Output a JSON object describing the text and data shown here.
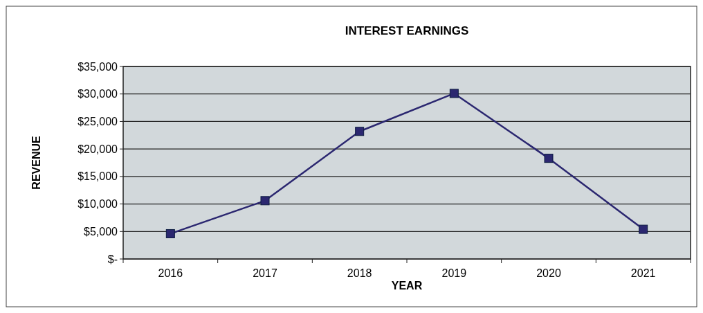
{
  "chart_data": {
    "type": "line",
    "title": "INTEREST EARNINGS",
    "xlabel": "YEAR",
    "ylabel": "REVENUE",
    "categories": [
      "2016",
      "2017",
      "2018",
      "2019",
      "2020",
      "2021"
    ],
    "series": [
      {
        "color": "#2b2770",
        "values": [
          4600,
          10600,
          23200,
          30100,
          18300,
          5400
        ]
      }
    ],
    "ylim": [
      0,
      35000
    ],
    "yticks": [
      {
        "value": 0,
        "label": "$-"
      },
      {
        "value": 5000,
        "label": "$5,000"
      },
      {
        "value": 10000,
        "label": "$10,000"
      },
      {
        "value": 15000,
        "label": "$15,000"
      },
      {
        "value": 20000,
        "label": "$20,000"
      },
      {
        "value": 25000,
        "label": "$25,000"
      },
      {
        "value": 30000,
        "label": "$30,000"
      },
      {
        "value": 35000,
        "label": "$35,000"
      }
    ],
    "grid": "y",
    "marker": "square",
    "line_style": "solid"
  }
}
